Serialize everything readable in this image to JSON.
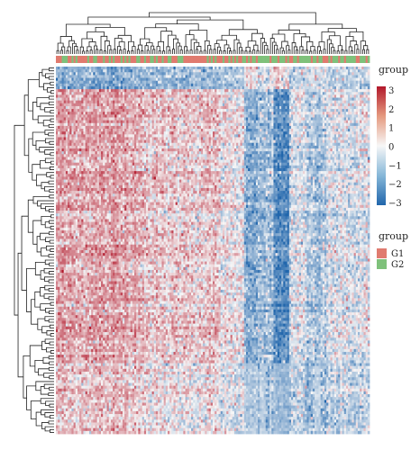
{
  "chart_data": {
    "type": "heatmap",
    "title": "",
    "xlabel": "",
    "ylabel": "",
    "color_scale": {
      "legend_title": "group",
      "ticks": [
        3,
        2,
        1,
        0,
        -1,
        -2,
        -3
      ],
      "range": [
        -3,
        3
      ],
      "low_color": "#2166ac",
      "mid_color": "#f7f7f7",
      "high_color": "#b2182b"
    },
    "annotation": {
      "legend_title": "group",
      "items": [
        {
          "label": "G1",
          "color": "#e07b6f"
        },
        {
          "label": "G2",
          "color": "#7fc17b"
        }
      ]
    },
    "n_rows": 130,
    "n_cols": 160,
    "col_dendrogram": true,
    "row_dendrogram": true
  }
}
